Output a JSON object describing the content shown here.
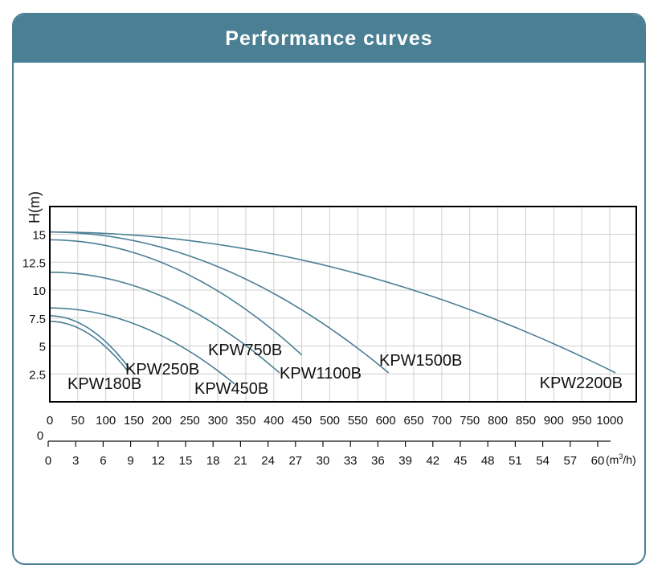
{
  "header": {
    "title": "Performance curves"
  },
  "colors": {
    "header_bg": "#4a7f94",
    "curve": "#4a7f94",
    "grid": "#cfcfcf",
    "frame": "#000000"
  },
  "chart_data": {
    "type": "line",
    "title": "Performance curves",
    "ylabel": "H(m)",
    "xlabel_unit_base": "(m",
    "xlabel_unit_sup": "3",
    "xlabel_unit_end": "/h)",
    "ylim": [
      0,
      17
    ],
    "y_ticks": [
      {
        "value": 2.5,
        "label": "2.5"
      },
      {
        "value": 5,
        "label": "5"
      },
      {
        "value": 7.5,
        "label": "7.5"
      },
      {
        "value": 10,
        "label": "10"
      },
      {
        "value": 12.5,
        "label": "12.5"
      },
      {
        "value": 15,
        "label": "15"
      }
    ],
    "x_lpm": {
      "range": [
        0,
        1000
      ],
      "ticks": [
        0,
        50,
        100,
        150,
        200,
        250,
        300,
        350,
        400,
        450,
        500,
        550,
        600,
        650,
        700,
        750,
        800,
        850,
        900,
        950,
        1000
      ],
      "labels": [
        "0",
        "50",
        "100",
        "150",
        "200",
        "250",
        "300",
        "350",
        "400",
        "450",
        "500",
        "550",
        "600",
        "650",
        "700",
        "750",
        "800",
        "850",
        "900",
        "950",
        "1000"
      ]
    },
    "axis_zero_label": "0",
    "x_m3h": {
      "ticks": [
        0,
        3,
        6,
        9,
        12,
        15,
        18,
        21,
        24,
        27,
        30,
        33,
        36,
        39,
        42,
        45,
        48,
        51,
        54,
        57,
        60
      ],
      "labels": [
        "0",
        "3",
        "6",
        "9",
        "12",
        "15",
        "18",
        "21",
        "24",
        "27",
        "30",
        "33",
        "36",
        "39",
        "42",
        "45",
        "48",
        "51",
        "54",
        "57",
        "60"
      ]
    },
    "series": [
      {
        "name": "KPW180B",
        "h0": 7.2,
        "flow_end": 140,
        "h_end": 2.7
      },
      {
        "name": "KPW250B",
        "h0": 7.7,
        "flow_end": 145,
        "h_end": 2.8
      },
      {
        "name": "KPW450B",
        "h0": 8.4,
        "flow_end": 330,
        "h_end": 1.6
      },
      {
        "name": "KPW750B",
        "h0": 11.6,
        "flow_end": 410,
        "h_end": 2.6
      },
      {
        "name": "KPW1100B",
        "h0": 14.5,
        "flow_end": 450,
        "h_end": 4.2
      },
      {
        "name": "KPW1500B",
        "h0": 15.2,
        "flow_end": 605,
        "h_end": 2.6
      },
      {
        "name": "KPW2200B",
        "h0": 15.2,
        "flow_end": 1010,
        "h_end": 2.6
      }
    ]
  }
}
